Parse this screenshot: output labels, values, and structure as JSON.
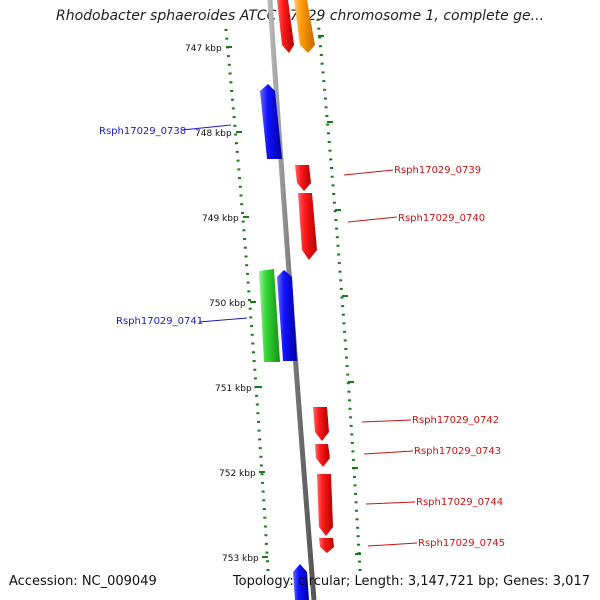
{
  "title": "Rhodobacter sphaeroides ATCC 17029 chromosome 1, complete ge...",
  "footer": {
    "accession": "Accession: NC_009049",
    "summary": "Topology: circular; Length: 3,147,721 bp; Genes: 3,017"
  },
  "colors": {
    "backbone": "#8c8c8c",
    "ticks": "#1a7a1a",
    "reverse_label": "#1a1ac8",
    "forward_label": "#cc1111",
    "red_gene": "#ee0000",
    "blue_gene": "#0000ee",
    "green_gene": "#22cc22",
    "orange_gene": "#ff9900"
  },
  "tick_labels": [
    "747 kbp",
    "748 kbp",
    "749 kbp",
    "750 kbp",
    "751 kbp",
    "752 kbp",
    "753 kbp"
  ],
  "gene_labels": [
    {
      "name": "Rsph17029_0738",
      "side": "left"
    },
    {
      "name": "Rsph17029_0739",
      "side": "right"
    },
    {
      "name": "Rsph17029_0740",
      "side": "right"
    },
    {
      "name": "Rsph17029_0741",
      "side": "left"
    },
    {
      "name": "Rsph17029_0742",
      "side": "right"
    },
    {
      "name": "Rsph17029_0743",
      "side": "right"
    },
    {
      "name": "Rsph17029_0744",
      "side": "right"
    },
    {
      "name": "Rsph17029_0745",
      "side": "right"
    }
  ],
  "genes": [
    {
      "color": "red",
      "strand": "forward"
    },
    {
      "color": "orange",
      "strand": "forward"
    },
    {
      "color": "blue",
      "strand": "reverse"
    },
    {
      "color": "red",
      "strand": "forward"
    },
    {
      "color": "red",
      "strand": "forward"
    },
    {
      "color": "green",
      "strand": "reverse"
    },
    {
      "color": "blue",
      "strand": "reverse"
    },
    {
      "color": "red",
      "strand": "forward"
    },
    {
      "color": "red",
      "strand": "forward"
    },
    {
      "color": "red",
      "strand": "forward"
    },
    {
      "color": "red",
      "strand": "forward"
    },
    {
      "color": "blue",
      "strand": "reverse"
    }
  ]
}
